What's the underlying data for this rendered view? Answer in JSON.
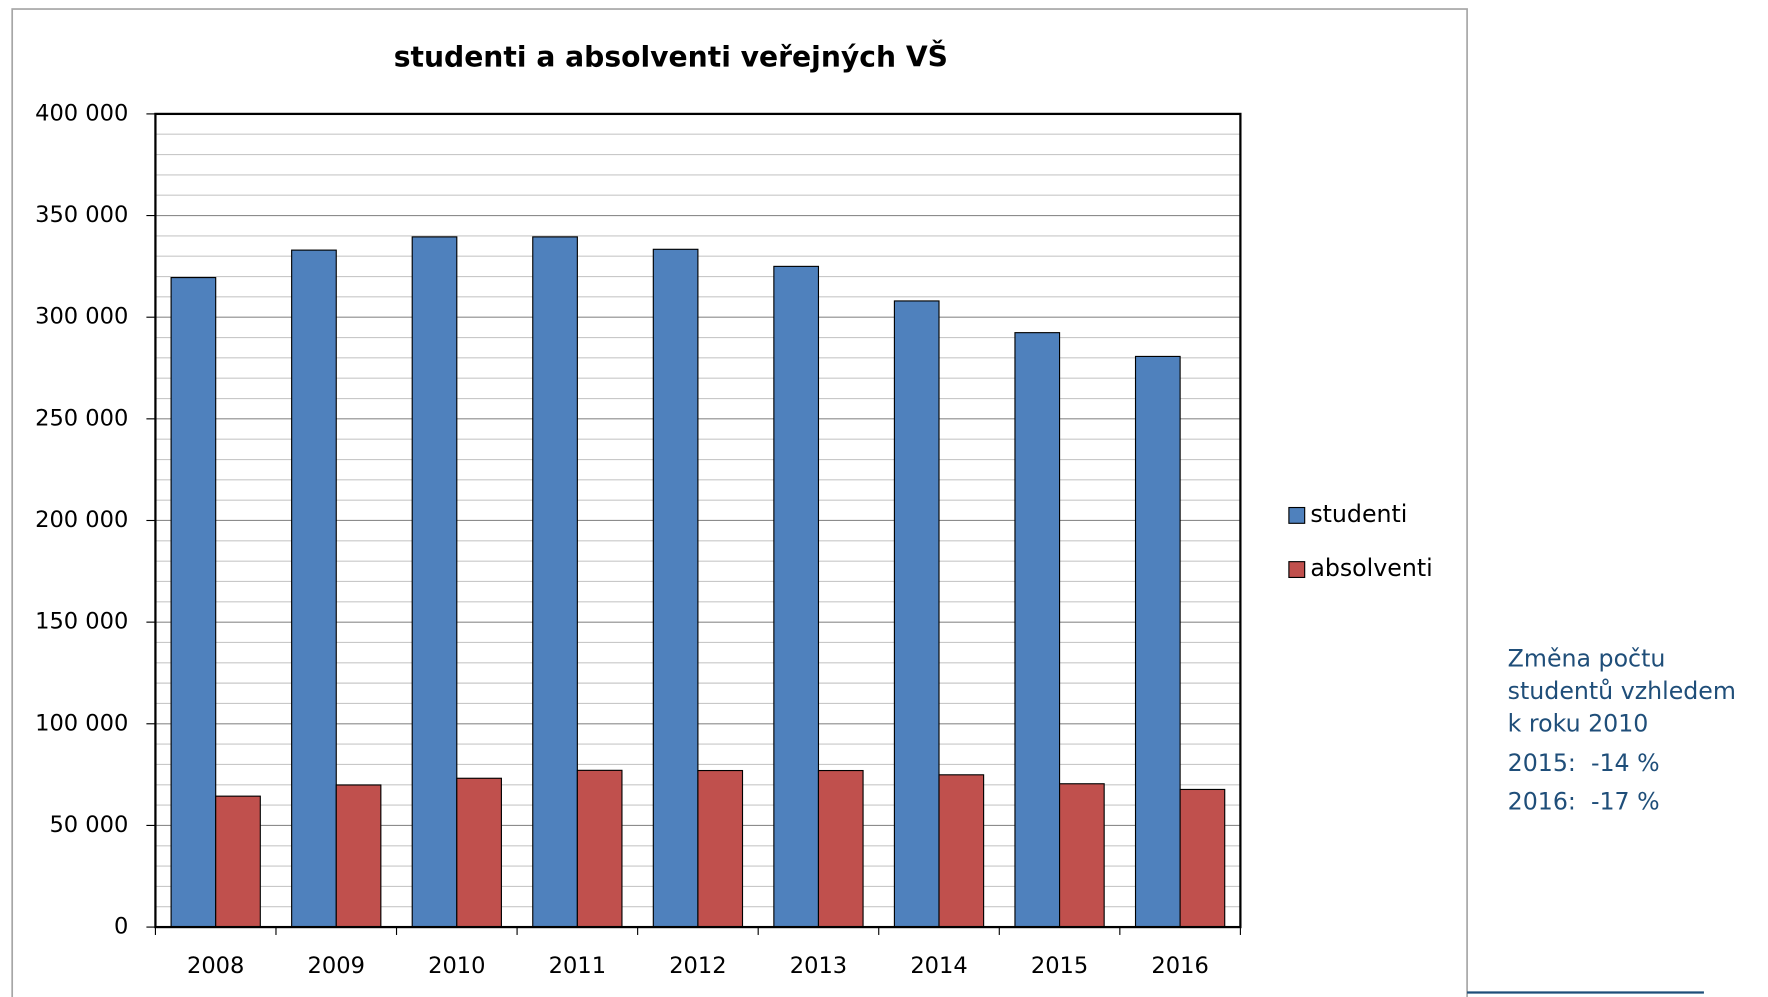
{
  "chart_data": {
    "type": "bar",
    "title": "studenti a absolventi veřejných VŠ",
    "categories": [
      "2008",
      "2009",
      "2010",
      "2011",
      "2012",
      "2013",
      "2014",
      "2015",
      "2016"
    ],
    "series": [
      {
        "name": "studenti",
        "color": "#4f81bd",
        "values": [
          319500,
          333000,
          339500,
          339500,
          333400,
          325000,
          308000,
          292400,
          280700
        ]
      },
      {
        "name": "absolventi",
        "color": "#c0504d",
        "values": [
          64400,
          69900,
          73200,
          77100,
          77000,
          77000,
          74900,
          70500,
          67700
        ]
      }
    ],
    "ylim": [
      0,
      400000
    ],
    "yticks": [
      0,
      {
        "value": 50000,
        "label": "50 000"
      },
      {
        "value": 100000,
        "label": "100 000"
      },
      {
        "value": 150000,
        "label": "150 000"
      },
      {
        "value": 200000,
        "label": "200 000"
      },
      {
        "value": 250000,
        "label": "250 000"
      },
      {
        "value": 300000,
        "label": "300 000"
      },
      {
        "value": 350000,
        "label": "350 000"
      },
      {
        "value": 400000,
        "label": "400 000"
      }
    ],
    "y_minor_ticks": [
      10000,
      20000,
      30000,
      40000,
      60000,
      70000,
      80000,
      90000,
      110000,
      120000,
      130000,
      140000,
      160000,
      170000,
      180000,
      190000,
      210000,
      220000,
      230000,
      240000,
      260000,
      270000,
      280000,
      290000,
      310000,
      320000,
      330000,
      340000,
      360000,
      370000,
      380000,
      390000
    ],
    "grid": true,
    "legend": "right"
  },
  "side_note": {
    "heading": [
      "Změna počtu",
      "studentů vzhledem",
      "k roku 2010"
    ],
    "lines": [
      "2015:  -14 %",
      "2016:  -17 %"
    ]
  }
}
